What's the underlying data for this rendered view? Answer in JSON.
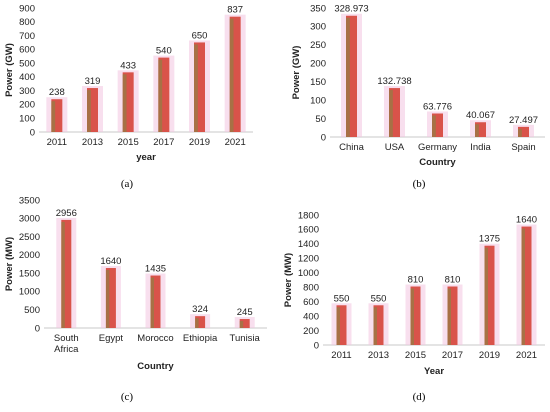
{
  "chart_data": [
    {
      "panel": "(a)",
      "type": "bar",
      "categories": [
        "2011",
        "2013",
        "2015",
        "2017",
        "2019",
        "2021"
      ],
      "values": [
        238,
        319,
        433,
        540,
        650,
        837
      ],
      "data_labels": [
        "238",
        "319",
        "433",
        "540",
        "650",
        "837"
      ],
      "xlabel": "year",
      "ylabel": "Power (GW)",
      "ylim": [
        0,
        900
      ],
      "yticks": [
        0,
        100,
        200,
        300,
        400,
        500,
        600,
        700,
        800,
        900
      ],
      "grid": false,
      "colors": {
        "bar": "#d9534a",
        "bar_shade": "#7e8a42",
        "glow": "#f2c4e0"
      }
    },
    {
      "panel": "(b)",
      "type": "bar",
      "categories": [
        "China",
        "USA",
        "Germany",
        "India",
        "Spain"
      ],
      "values": [
        328.973,
        132.738,
        63.776,
        40.067,
        27.497
      ],
      "data_labels": [
        "328.973",
        "132.738",
        "63.776",
        "40.067",
        "27.497"
      ],
      "xlabel": "Country",
      "ylabel": "Power (GW)",
      "ylim": [
        0,
        350
      ],
      "yticks": [
        0,
        50,
        100,
        150,
        200,
        250,
        300,
        350
      ],
      "grid": false,
      "colors": {
        "bar": "#d9534a",
        "bar_shade": "#7e8a42",
        "glow": "#f2c4e0"
      }
    },
    {
      "panel": "(c)",
      "type": "bar",
      "categories": [
        "South Africa",
        "Egypt",
        "Morocco",
        "Ethiopia",
        "Tunisia"
      ],
      "values": [
        2956,
        1640,
        1435,
        324,
        245
      ],
      "data_labels": [
        "2956",
        "1640",
        "1435",
        "324",
        "245"
      ],
      "xlabel": "Country",
      "ylabel": "Power (MW)",
      "ylim": [
        0,
        3500
      ],
      "yticks": [
        0,
        500,
        1000,
        1500,
        2000,
        2500,
        3000,
        3500
      ],
      "grid": false,
      "colors": {
        "bar": "#d9534a",
        "bar_shade": "#7e8a42",
        "glow": "#f2c4e0"
      }
    },
    {
      "panel": "(d)",
      "type": "bar",
      "categories": [
        "2011",
        "2013",
        "2015",
        "2017",
        "2019",
        "2021"
      ],
      "values": [
        550,
        550,
        810,
        810,
        1375,
        1640
      ],
      "data_labels": [
        "550",
        "550",
        "810",
        "810",
        "1375",
        "1640"
      ],
      "xlabel": "Year",
      "ylabel": "Power (MW)",
      "ylim": [
        0,
        1800
      ],
      "yticks": [
        0,
        200,
        400,
        600,
        800,
        1000,
        1200,
        1400,
        1600,
        1800
      ],
      "grid": false,
      "colors": {
        "bar": "#d9534a",
        "bar_shade": "#7e8a42",
        "glow": "#f2c4e0"
      }
    }
  ]
}
